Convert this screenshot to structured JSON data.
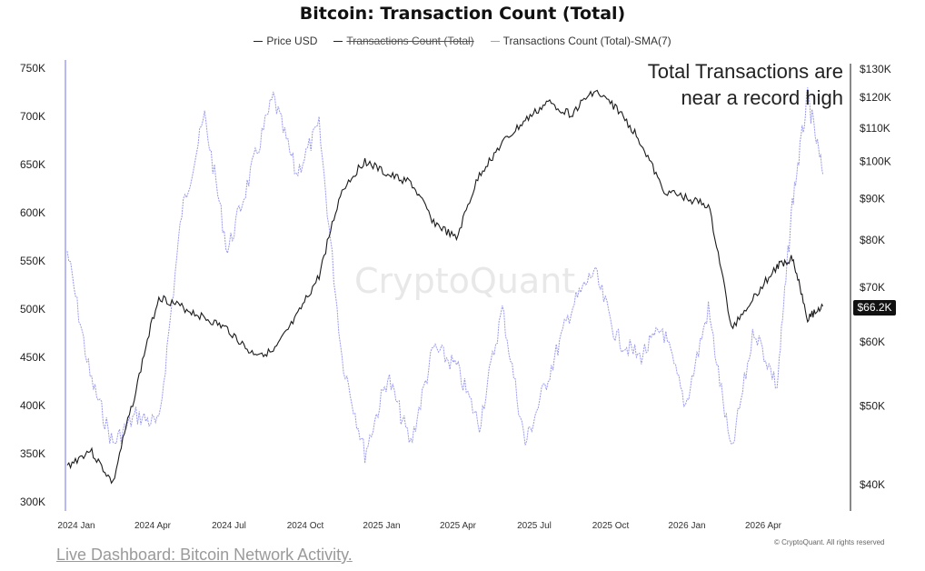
{
  "page": {
    "title": "Bitcoin: Transaction Count (Total)",
    "annotation_line1": "Total Transactions are",
    "annotation_line2": "near a record high",
    "watermark": "CryptoQuant",
    "copyright": "© CryptoQuant. All rights reserved",
    "footer_link": "Live Dashboard: Bitcoin Network Activity.",
    "price_badge": "$66.2K"
  },
  "legend": [
    {
      "label": "Price USD",
      "struck": false
    },
    {
      "label": "Transactions Count (Total)",
      "struck": true
    },
    {
      "label": "Transactions Count (Total)-SMA(7)",
      "struck": false
    }
  ],
  "colors": {
    "price": "#1a1a1a",
    "tx_sma": "#9a9af0",
    "axis": "#111111"
  },
  "chart_data": {
    "type": "line",
    "title": "Bitcoin: Transaction Count (Total)",
    "x_ticks": [
      "2024 Jan",
      "2024 Apr",
      "2024 Jul",
      "2024 Oct",
      "2025 Jan",
      "2025 Apr",
      "2025 Jul",
      "2025 Oct",
      "2026 Jan",
      "2026 Apr"
    ],
    "left_axis": {
      "ylim": [
        300000,
        750000
      ],
      "ticks": [
        "750K",
        "700K",
        "650K",
        "600K",
        "550K",
        "500K",
        "450K",
        "400K",
        "350K",
        "300K"
      ]
    },
    "right_axis": {
      "scale": "log",
      "ylim": [
        37000,
        135000
      ],
      "ticks": [
        "$130K",
        "$120K",
        "$110K",
        "$100K",
        "$90K",
        "$80K",
        "$70K",
        "$60K",
        "$50K",
        "$40K"
      ]
    },
    "series": [
      {
        "name": "Price USD",
        "axis": "right",
        "x_index": [
          0,
          0.3,
          0.6,
          0.9,
          1.2,
          1.5,
          1.8,
          2.1,
          2.4,
          2.7,
          3,
          3.3,
          3.6,
          3.9,
          4.2,
          4.5,
          4.8,
          5.1,
          5.4,
          5.7,
          6,
          6.3,
          6.6,
          6.9,
          7.2,
          7.5,
          7.8,
          8.1,
          8.4,
          8.7,
          9,
          9.3,
          9.5,
          9.7,
          9.9
        ],
        "values": [
          42000,
          44000,
          40000,
          52000,
          68000,
          66000,
          64000,
          62000,
          58000,
          58000,
          64000,
          72000,
          92000,
          100000,
          96000,
          94000,
          84000,
          80000,
          96000,
          105000,
          112000,
          118000,
          114000,
          122000,
          116000,
          106000,
          92000,
          90000,
          88000,
          62000,
          68000,
          74000,
          76000,
          64000,
          66200
        ]
      },
      {
        "name": "Transactions Count (Total)-SMA(7)",
        "axis": "left",
        "x_index": [
          0,
          0.3,
          0.6,
          0.9,
          1.2,
          1.5,
          1.8,
          2.1,
          2.4,
          2.7,
          3,
          3.3,
          3.6,
          3.9,
          4.2,
          4.5,
          4.8,
          5.1,
          5.4,
          5.7,
          6,
          6.3,
          6.6,
          6.9,
          7.2,
          7.5,
          7.8,
          8.1,
          8.4,
          8.7,
          9,
          9.3,
          9.5,
          9.7,
          9.9
        ],
        "values": [
          560000,
          430000,
          360000,
          390000,
          380000,
          600000,
          700000,
          560000,
          640000,
          720000,
          640000,
          690000,
          450000,
          350000,
          430000,
          360000,
          460000,
          440000,
          380000,
          500000,
          360000,
          430000,
          500000,
          540000,
          470000,
          450000,
          480000,
          400000,
          500000,
          350000,
          480000,
          420000,
          610000,
          720000,
          640000
        ]
      }
    ]
  }
}
